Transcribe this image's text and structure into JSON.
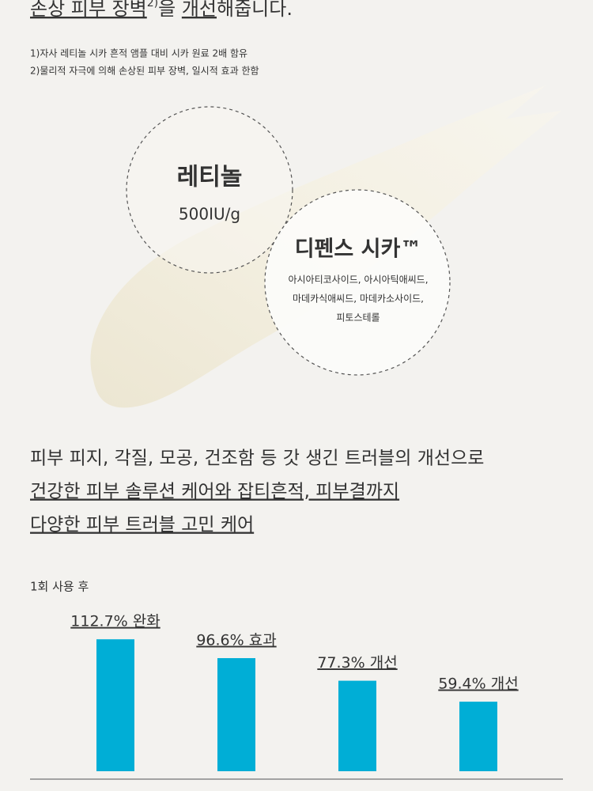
{
  "heading": {
    "part1": "손상 피부 장벽",
    "sup": "2)",
    "part2": "을 ",
    "part3": "개선",
    "part4": "해줍니다."
  },
  "footnotes": [
    "1)자사 레티놀 시카 흔적 앰플 대비 시카 원료 2배 함유",
    "2)물리적 자극에 의해 손상된 피부 장벽, 일시적 효과 한함"
  ],
  "circles": [
    {
      "title": "레티놀",
      "lines": [
        "500IU/g"
      ]
    },
    {
      "title": "디펜스 시카™",
      "lines": [
        "아시아티코사이드, 아시아틱애씨드,",
        "마데카식애씨드, 마데카소사이드,",
        "피토스테롤"
      ]
    }
  ],
  "claims": [
    "피부 피지, 각질, 모공, 건조함 등 갓 생긴 트러블의 개선으로",
    "건강한 피부 솔루션 케어와 잡티흔적, 피부결까지",
    "다양한 피부 트러블 고민 케어"
  ],
  "chart_data": {
    "type": "bar",
    "title": "1회 사용 후",
    "values": [
      112.7,
      96.6,
      77.3,
      59.4
    ],
    "value_labels": [
      "112.7% 완화",
      "96.6% 효과",
      "77.3% 개선",
      "59.4% 개선"
    ],
    "color": "#00aed6"
  }
}
